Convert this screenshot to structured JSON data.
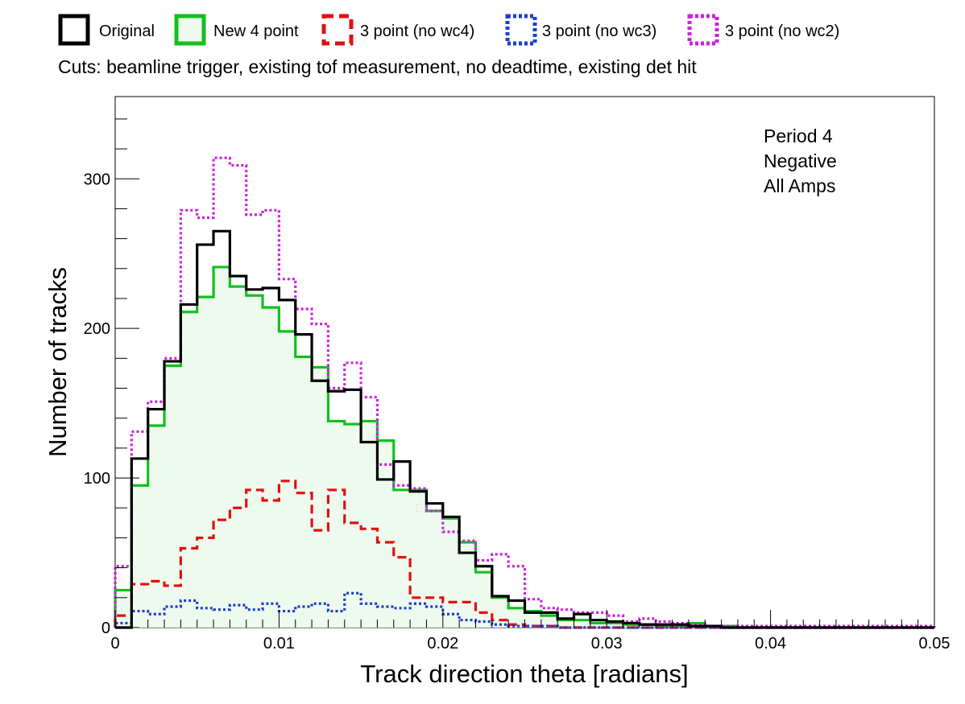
{
  "chart_data": {
    "type": "line",
    "step": true,
    "xlabel": "Track direction theta [radians]",
    "ylabel": "Number of tracks",
    "subtitle": "Cuts: beamline trigger, existing tof measurement, no deadtime, existing det hit",
    "annotation": [
      "Period 4",
      "Negative",
      "All Amps"
    ],
    "xlim": [
      0,
      0.05
    ],
    "ylim": [
      0,
      355
    ],
    "bin_width": 0.001,
    "x_ticks": [
      "0",
      "0.01",
      "0.02",
      "0.03",
      "0.04",
      "0.05"
    ],
    "y_ticks": [
      "0",
      "100",
      "200",
      "300"
    ],
    "x_tick_values": [
      0,
      0.01,
      0.02,
      0.03,
      0.04,
      0.05
    ],
    "y_tick_values": [
      0,
      100,
      200,
      300
    ],
    "legend_position": "top",
    "series": [
      {
        "name": "Original",
        "color": "#000000",
        "dash": "solid",
        "fill": "",
        "values": [
          0,
          113,
          146,
          178,
          216,
          256,
          265,
          235,
          226,
          227,
          219,
          196,
          165,
          158,
          159,
          124,
          99,
          111,
          91,
          83,
          74,
          50,
          41,
          21,
          18,
          10,
          10,
          6,
          9,
          5,
          4,
          3,
          2,
          2,
          2,
          1,
          1,
          0,
          0,
          0,
          0,
          0,
          0,
          0,
          0,
          0,
          0,
          0,
          0,
          0
        ]
      },
      {
        "name": "New 4 point",
        "color": "#14c01e",
        "dash": "solid",
        "fill": "#effaef",
        "values": [
          25,
          95,
          135,
          175,
          211,
          221,
          241,
          228,
          222,
          214,
          198,
          181,
          174,
          138,
          136,
          138,
          125,
          92,
          92,
          78,
          73,
          57,
          37,
          20,
          13,
          11,
          8,
          5,
          5,
          3,
          3,
          2,
          2,
          1,
          1,
          3,
          1,
          1,
          0,
          0,
          0,
          0,
          0,
          0,
          0,
          0,
          0,
          0,
          0,
          0
        ]
      },
      {
        "name": "3 point (no wc4)",
        "color": "#e01010",
        "dash": "dashed",
        "fill": "",
        "values": [
          8,
          29,
          31,
          28,
          53,
          60,
          72,
          80,
          92,
          85,
          98,
          90,
          65,
          92,
          70,
          66,
          57,
          47,
          20,
          20,
          17,
          17,
          10,
          5,
          2,
          1,
          1,
          0,
          0,
          0,
          0,
          0,
          0,
          0,
          0,
          0,
          0,
          0,
          0,
          0,
          0,
          0,
          0,
          0,
          0,
          0,
          0,
          0,
          0,
          0
        ]
      },
      {
        "name": "3 point (no wc3)",
        "color": "#1a3fd0",
        "dash": "dotted",
        "fill": "",
        "values": [
          3,
          11,
          9,
          14,
          18,
          13,
          12,
          15,
          12,
          16,
          11,
          14,
          16,
          11,
          23,
          16,
          14,
          13,
          16,
          14,
          9,
          5,
          4,
          2,
          1,
          1,
          1,
          0,
          0,
          0,
          0,
          0,
          0,
          0,
          0,
          0,
          0,
          0,
          0,
          0,
          0,
          0,
          0,
          0,
          0,
          0,
          0,
          0,
          0,
          0
        ]
      },
      {
        "name": "3 point (no wc2)",
        "color": "#cc22e0",
        "dash": "dotted",
        "fill": "",
        "values": [
          41,
          131,
          151,
          180,
          279,
          274,
          314,
          309,
          276,
          279,
          233,
          213,
          203,
          160,
          177,
          154,
          109,
          95,
          93,
          78,
          64,
          58,
          45,
          49,
          41,
          19,
          13,
          12,
          10,
          10,
          8,
          4,
          6,
          4,
          3,
          2,
          1,
          1,
          1,
          1,
          1,
          1,
          1,
          1,
          1,
          1,
          1,
          1,
          1,
          1
        ]
      }
    ]
  }
}
